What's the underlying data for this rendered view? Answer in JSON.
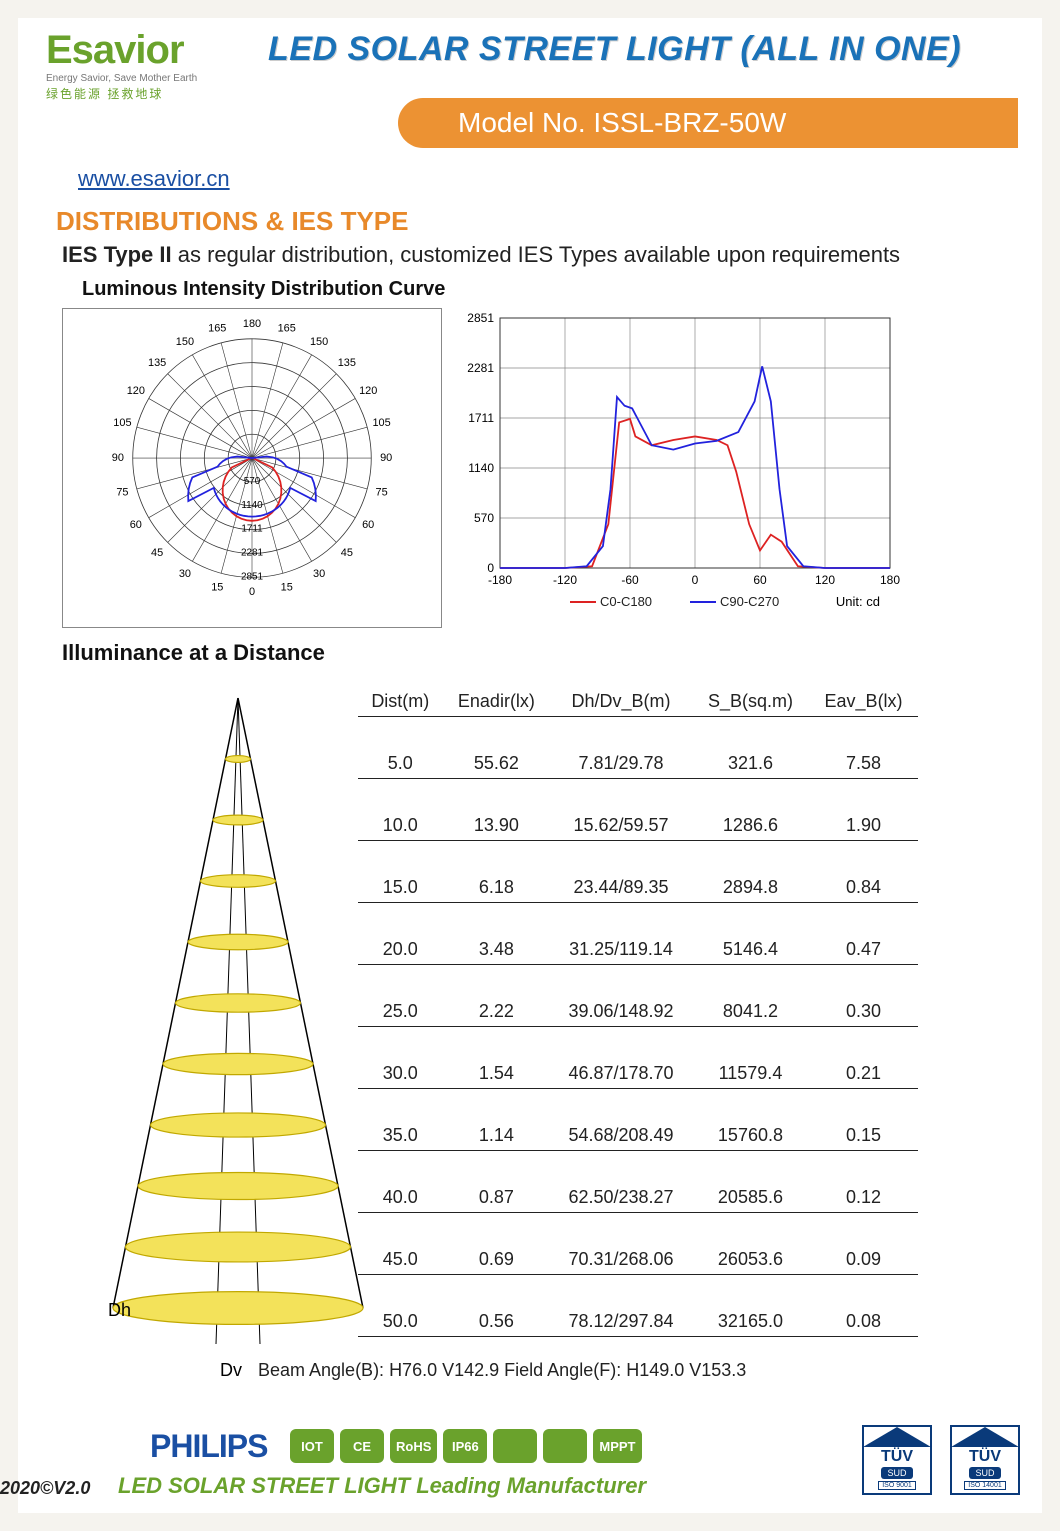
{
  "header": {
    "logo_main": "Esavior",
    "logo_sub": "Energy Savior, Save Mother Earth",
    "logo_cn": "绿色能源 拯救地球",
    "title": "LED SOLAR STREET LIGHT (ALL IN ONE)",
    "model_label": "Model No. ISSL-BRZ-50W",
    "url": "www.esavior.cn"
  },
  "section": {
    "heading": "DISTRIBUTIONS & IES TYPE",
    "desc_lead": "IES Type II",
    "desc_rest": " as regular distribution, customized IES Types available upon requirements",
    "curve_title": "Luminous Intensity Distribution Curve",
    "illum_heading": "Illuminance at a Distance"
  },
  "polar": {
    "angle_labels": [
      0,
      15,
      30,
      45,
      60,
      75,
      90,
      105,
      120,
      135,
      150,
      165,
      180
    ],
    "ring_labels": [
      "570",
      "1140",
      "1711",
      "2281",
      "2851"
    ],
    "ring_step": 5,
    "c0_color": "#d22",
    "c90_color": "#22d"
  },
  "cartesian": {
    "x_ticks": [
      -180,
      -120,
      -60,
      0,
      60,
      120,
      180
    ],
    "y_ticks": [
      0,
      570,
      1140,
      1711,
      2281,
      2851
    ],
    "unit": "Unit: cd",
    "legend": [
      {
        "label": "C0-C180",
        "color": "#d22"
      },
      {
        "label": "C90-C270",
        "color": "#22d"
      }
    ],
    "grid_color": "#888",
    "c0_series": [
      [
        -180,
        0
      ],
      [
        -120,
        0
      ],
      [
        -95,
        20
      ],
      [
        -80,
        500
      ],
      [
        -70,
        1660
      ],
      [
        -60,
        1700
      ],
      [
        -55,
        1500
      ],
      [
        -40,
        1400
      ],
      [
        -20,
        1460
      ],
      [
        0,
        1500
      ],
      [
        20,
        1460
      ],
      [
        30,
        1400
      ],
      [
        38,
        1100
      ],
      [
        50,
        500
      ],
      [
        60,
        200
      ],
      [
        70,
        380
      ],
      [
        80,
        300
      ],
      [
        95,
        20
      ],
      [
        120,
        0
      ],
      [
        180,
        0
      ]
    ],
    "c90_series": [
      [
        -180,
        0
      ],
      [
        -120,
        0
      ],
      [
        -100,
        20
      ],
      [
        -85,
        250
      ],
      [
        -78,
        900
      ],
      [
        -72,
        1950
      ],
      [
        -65,
        1850
      ],
      [
        -58,
        1820
      ],
      [
        -40,
        1400
      ],
      [
        -20,
        1350
      ],
      [
        0,
        1420
      ],
      [
        20,
        1450
      ],
      [
        40,
        1550
      ],
      [
        55,
        1900
      ],
      [
        62,
        2300
      ],
      [
        70,
        1900
      ],
      [
        78,
        900
      ],
      [
        85,
        250
      ],
      [
        100,
        20
      ],
      [
        120,
        0
      ],
      [
        180,
        0
      ]
    ]
  },
  "illuminance": {
    "columns": [
      "Dist(m)",
      "Enadir(lx)",
      "Dh/Dv_B(m)",
      "S_B(sq.m)",
      "Eav_B(lx)"
    ],
    "rows": [
      [
        "5.0",
        "55.62",
        "7.81/29.78",
        "321.6",
        "7.58"
      ],
      [
        "10.0",
        "13.90",
        "15.62/59.57",
        "1286.6",
        "1.90"
      ],
      [
        "15.0",
        "6.18",
        "23.44/89.35",
        "2894.8",
        "0.84"
      ],
      [
        "20.0",
        "3.48",
        "31.25/119.14",
        "5146.4",
        "0.47"
      ],
      [
        "25.0",
        "2.22",
        "39.06/148.92",
        "8041.2",
        "0.30"
      ],
      [
        "30.0",
        "1.54",
        "46.87/178.70",
        "11579.4",
        "0.21"
      ],
      [
        "35.0",
        "1.14",
        "54.68/208.49",
        "15760.8",
        "0.15"
      ],
      [
        "40.0",
        "0.87",
        "62.50/238.27",
        "20585.6",
        "0.12"
      ],
      [
        "45.0",
        "0.69",
        "70.31/268.06",
        "26053.6",
        "0.09"
      ],
      [
        "50.0",
        "0.56",
        "78.12/297.84",
        "32165.0",
        "0.08"
      ]
    ],
    "dh_label": "Dh",
    "dv_label": "Dv",
    "ellipse_fill": "#f3e25a",
    "ellipse_stroke": "#c1a800",
    "beam_angle": "Beam Angle(B): H76.0 V142.9  Field Angle(F): H149.0 V153.3"
  },
  "footer": {
    "philips": "PHILIPS",
    "badges": [
      {
        "text": "IOT",
        "bg": "#6aa22c"
      },
      {
        "text": "CE",
        "bg": "#6aa22c"
      },
      {
        "text": "RoHS",
        "bg": "#6aa22c"
      },
      {
        "text": "IP66",
        "bg": "#6aa22c"
      },
      {
        "text": "",
        "bg": "#6aa22c"
      },
      {
        "text": "",
        "bg": "#6aa22c"
      },
      {
        "text": "MPPT",
        "bg": "#6aa22c"
      }
    ],
    "tagline": "LED SOLAR STREET LIGHT Leading Manufacturer",
    "version": "2020©V2.0",
    "tuv": {
      "main": "TÜV",
      "sud": "SUD",
      "iso1": "ISO 9001",
      "iso2": "ISO 14001"
    }
  }
}
